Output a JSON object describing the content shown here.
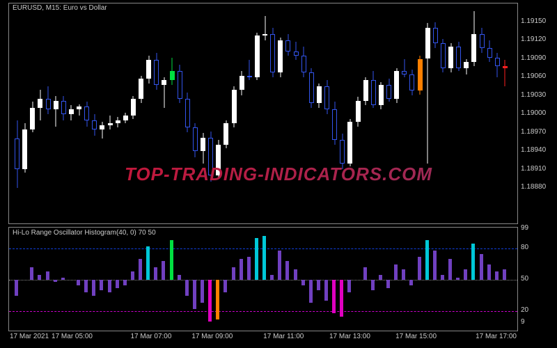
{
  "main": {
    "title": "EURUSD, M15:  Euro vs  Dollar",
    "background": "#000000",
    "border": "#888888",
    "ylim": [
      1.1882,
      1.1918
    ],
    "yticks": [
      1.1888,
      1.1891,
      1.1894,
      1.1897,
      1.19,
      1.1903,
      1.1906,
      1.1909,
      1.1912,
      1.1915
    ],
    "ytick_labels": [
      "1.18880",
      "1.18910",
      "1.18940",
      "1.18970",
      "1.19000",
      "1.19030",
      "1.19060",
      "1.19090",
      "1.19120",
      "1.19150"
    ],
    "candle_up_fill": "#ffffff",
    "candle_up_border": "#ffffff",
    "candle_down_fill": "#000000",
    "candle_down_border": "#3355ee",
    "candle_width": 7,
    "wick_up_color": "#ffffff",
    "wick_down_color": "#3355ee",
    "candles": [
      {
        "o": 1.1896,
        "h": 1.1899,
        "l": 1.1888,
        "c": 1.1891
      },
      {
        "o": 1.1891,
        "h": 1.18985,
        "l": 1.18905,
        "c": 1.18975
      },
      {
        "o": 1.18975,
        "h": 1.1902,
        "l": 1.1897,
        "c": 1.1901
      },
      {
        "o": 1.1901,
        "h": 1.1904,
        "l": 1.1899,
        "c": 1.19025
      },
      {
        "o": 1.19025,
        "h": 1.19045,
        "l": 1.19,
        "c": 1.19008
      },
      {
        "o": 1.19008,
        "h": 1.1903,
        "l": 1.1898,
        "c": 1.19022
      },
      {
        "o": 1.19022,
        "h": 1.1903,
        "l": 1.1899,
        "c": 1.19
      },
      {
        "o": 1.19,
        "h": 1.19015,
        "l": 1.1899,
        "c": 1.19008
      },
      {
        "o": 1.19008,
        "h": 1.19016,
        "l": 1.18998,
        "c": 1.19012
      },
      {
        "o": 1.19012,
        "h": 1.1902,
        "l": 1.1898,
        "c": 1.1899
      },
      {
        "o": 1.1899,
        "h": 1.19,
        "l": 1.18965,
        "c": 1.18975
      },
      {
        "o": 1.18975,
        "h": 1.18988,
        "l": 1.1896,
        "c": 1.18982
      },
      {
        "o": 1.18982,
        "h": 1.18998,
        "l": 1.18975,
        "c": 1.18985
      },
      {
        "o": 1.18985,
        "h": 1.18995,
        "l": 1.18978,
        "c": 1.1899
      },
      {
        "o": 1.1899,
        "h": 1.19002,
        "l": 1.18985,
        "c": 1.18998
      },
      {
        "o": 1.18998,
        "h": 1.1903,
        "l": 1.18992,
        "c": 1.19025
      },
      {
        "o": 1.19025,
        "h": 1.19062,
        "l": 1.19018,
        "c": 1.19058
      },
      {
        "o": 1.19058,
        "h": 1.19095,
        "l": 1.1905,
        "c": 1.19088
      },
      {
        "o": 1.19088,
        "h": 1.191,
        "l": 1.1904,
        "c": 1.19048
      },
      {
        "o": 1.19048,
        "h": 1.1906,
        "l": 1.1901,
        "c": 1.19055
      },
      {
        "o": 1.19055,
        "h": 1.19092,
        "l": 1.19048,
        "c": 1.1907,
        "special": "green"
      },
      {
        "o": 1.1907,
        "h": 1.1908,
        "l": 1.19018,
        "c": 1.19025
      },
      {
        "o": 1.19025,
        "h": 1.19035,
        "l": 1.1897,
        "c": 1.18978
      },
      {
        "o": 1.18978,
        "h": 1.18985,
        "l": 1.1893,
        "c": 1.1894
      },
      {
        "o": 1.1894,
        "h": 1.1897,
        "l": 1.1892,
        "c": 1.18962
      },
      {
        "o": 1.18962,
        "h": 1.18972,
        "l": 1.1889,
        "c": 1.189
      },
      {
        "o": 1.189,
        "h": 1.18958,
        "l": 1.18895,
        "c": 1.1895
      },
      {
        "o": 1.1895,
        "h": 1.1899,
        "l": 1.18945,
        "c": 1.18985
      },
      {
        "o": 1.18985,
        "h": 1.19045,
        "l": 1.18978,
        "c": 1.1904
      },
      {
        "o": 1.1904,
        "h": 1.1907,
        "l": 1.1903,
        "c": 1.19062
      },
      {
        "o": 1.19062,
        "h": 1.19088,
        "l": 1.19055,
        "c": 1.1906
      },
      {
        "o": 1.1906,
        "h": 1.19132,
        "l": 1.19055,
        "c": 1.19128
      },
      {
        "o": 1.19128,
        "h": 1.1916,
        "l": 1.1912,
        "c": 1.1913
      },
      {
        "o": 1.1913,
        "h": 1.1914,
        "l": 1.1906,
        "c": 1.19068
      },
      {
        "o": 1.19068,
        "h": 1.19125,
        "l": 1.1906,
        "c": 1.1912
      },
      {
        "o": 1.1912,
        "h": 1.1913,
        "l": 1.19095,
        "c": 1.19102
      },
      {
        "o": 1.19102,
        "h": 1.19118,
        "l": 1.19088,
        "c": 1.19095
      },
      {
        "o": 1.19095,
        "h": 1.1911,
        "l": 1.1906,
        "c": 1.19068
      },
      {
        "o": 1.19068,
        "h": 1.19075,
        "l": 1.1901,
        "c": 1.19018
      },
      {
        "o": 1.19018,
        "h": 1.1905,
        "l": 1.1901,
        "c": 1.19045
      },
      {
        "o": 1.19045,
        "h": 1.19055,
        "l": 1.19,
        "c": 1.19008
      },
      {
        "o": 1.19008,
        "h": 1.1902,
        "l": 1.1895,
        "c": 1.18958
      },
      {
        "o": 1.18958,
        "h": 1.18968,
        "l": 1.1891,
        "c": 1.1892
      },
      {
        "o": 1.1892,
        "h": 1.18992,
        "l": 1.18915,
        "c": 1.18988
      },
      {
        "o": 1.18988,
        "h": 1.19028,
        "l": 1.1898,
        "c": 1.19022
      },
      {
        "o": 1.19022,
        "h": 1.1906,
        "l": 1.19015,
        "c": 1.19055
      },
      {
        "o": 1.19055,
        "h": 1.1907,
        "l": 1.1901,
        "c": 1.19015
      },
      {
        "o": 1.19015,
        "h": 1.19052,
        "l": 1.19008,
        "c": 1.19048
      },
      {
        "o": 1.19048,
        "h": 1.19058,
        "l": 1.1902,
        "c": 1.19025
      },
      {
        "o": 1.19025,
        "h": 1.19075,
        "l": 1.19018,
        "c": 1.1907
      },
      {
        "o": 1.1907,
        "h": 1.1909,
        "l": 1.1906,
        "c": 1.19065
      },
      {
        "o": 1.19065,
        "h": 1.19072,
        "l": 1.1903,
        "c": 1.19038
      },
      {
        "o": 1.19038,
        "h": 1.19095,
        "l": 1.19032,
        "c": 1.1909,
        "special": "orange"
      },
      {
        "o": 1.1909,
        "h": 1.19148,
        "l": 1.1892,
        "c": 1.1914
      },
      {
        "o": 1.1914,
        "h": 1.1915,
        "l": 1.19108,
        "c": 1.19115
      },
      {
        "o": 1.19115,
        "h": 1.19122,
        "l": 1.19068,
        "c": 1.19075
      },
      {
        "o": 1.19075,
        "h": 1.19115,
        "l": 1.19068,
        "c": 1.1911
      },
      {
        "o": 1.1911,
        "h": 1.19118,
        "l": 1.1907,
        "c": 1.19075
      },
      {
        "o": 1.19075,
        "h": 1.1909,
        "l": 1.19065,
        "c": 1.19085
      },
      {
        "o": 1.19085,
        "h": 1.19168,
        "l": 1.19078,
        "c": 1.1913
      },
      {
        "o": 1.1913,
        "h": 1.1914,
        "l": 1.191,
        "c": 1.19108
      },
      {
        "o": 1.19108,
        "h": 1.1912,
        "l": 1.19085,
        "c": 1.19092
      },
      {
        "o": 1.19092,
        "h": 1.191,
        "l": 1.1906,
        "c": 1.19078
      },
      {
        "o": 1.19078,
        "h": 1.19088,
        "l": 1.19045,
        "c": 1.19075,
        "special": "red"
      }
    ]
  },
  "oscillator": {
    "title": "Hi-Lo Range Oscillator Histogram(40, 0) 70 50",
    "ylim": [
      0,
      100
    ],
    "yticks": [
      9,
      20,
      50,
      80,
      99
    ],
    "ytick_labels": [
      "9",
      "20",
      "50",
      "80",
      "99"
    ],
    "ref_upper": {
      "value": 80,
      "color": "#1040dd"
    },
    "ref_mid": {
      "value": 50,
      "color": "#888888"
    },
    "ref_lower": {
      "value": 20,
      "color": "#cc00cc"
    },
    "colors": {
      "purple": "#7040c0",
      "cyan": "#00c8d8",
      "green": "#00e040",
      "magenta": "#e000c0",
      "orange": "#ff8000"
    },
    "bars": [
      {
        "v": 35,
        "c": "purple"
      },
      {
        "v": 50,
        "c": "purple"
      },
      {
        "v": 62,
        "c": "purple"
      },
      {
        "v": 55,
        "c": "purple"
      },
      {
        "v": 58,
        "c": "purple"
      },
      {
        "v": 48,
        "c": "purple"
      },
      {
        "v": 52,
        "c": "purple"
      },
      {
        "v": 50,
        "c": "purple"
      },
      {
        "v": 45,
        "c": "purple"
      },
      {
        "v": 38,
        "c": "purple"
      },
      {
        "v": 35,
        "c": "purple"
      },
      {
        "v": 40,
        "c": "purple"
      },
      {
        "v": 38,
        "c": "purple"
      },
      {
        "v": 42,
        "c": "purple"
      },
      {
        "v": 45,
        "c": "purple"
      },
      {
        "v": 58,
        "c": "purple"
      },
      {
        "v": 70,
        "c": "purple"
      },
      {
        "v": 82,
        "c": "cyan"
      },
      {
        "v": 62,
        "c": "purple"
      },
      {
        "v": 68,
        "c": "purple"
      },
      {
        "v": 88,
        "c": "green"
      },
      {
        "v": 55,
        "c": "purple"
      },
      {
        "v": 35,
        "c": "purple"
      },
      {
        "v": 22,
        "c": "purple"
      },
      {
        "v": 28,
        "c": "purple"
      },
      {
        "v": 10,
        "c": "magenta"
      },
      {
        "v": 12,
        "c": "orange"
      },
      {
        "v": 38,
        "c": "purple"
      },
      {
        "v": 62,
        "c": "purple"
      },
      {
        "v": 70,
        "c": "purple"
      },
      {
        "v": 72,
        "c": "purple"
      },
      {
        "v": 90,
        "c": "cyan"
      },
      {
        "v": 92,
        "c": "cyan"
      },
      {
        "v": 55,
        "c": "purple"
      },
      {
        "v": 78,
        "c": "purple"
      },
      {
        "v": 68,
        "c": "purple"
      },
      {
        "v": 60,
        "c": "purple"
      },
      {
        "v": 45,
        "c": "purple"
      },
      {
        "v": 28,
        "c": "purple"
      },
      {
        "v": 40,
        "c": "purple"
      },
      {
        "v": 30,
        "c": "purple"
      },
      {
        "v": 18,
        "c": "magenta"
      },
      {
        "v": 15,
        "c": "magenta"
      },
      {
        "v": 38,
        "c": "purple"
      },
      {
        "v": 50,
        "c": "purple"
      },
      {
        "v": 62,
        "c": "purple"
      },
      {
        "v": 40,
        "c": "purple"
      },
      {
        "v": 55,
        "c": "purple"
      },
      {
        "v": 42,
        "c": "purple"
      },
      {
        "v": 65,
        "c": "purple"
      },
      {
        "v": 60,
        "c": "purple"
      },
      {
        "v": 45,
        "c": "purple"
      },
      {
        "v": 72,
        "c": "purple"
      },
      {
        "v": 88,
        "c": "cyan"
      },
      {
        "v": 78,
        "c": "purple"
      },
      {
        "v": 55,
        "c": "purple"
      },
      {
        "v": 70,
        "c": "purple"
      },
      {
        "v": 52,
        "c": "purple"
      },
      {
        "v": 60,
        "c": "purple"
      },
      {
        "v": 85,
        "c": "cyan"
      },
      {
        "v": 75,
        "c": "purple"
      },
      {
        "v": 65,
        "c": "purple"
      },
      {
        "v": 58,
        "c": "purple"
      },
      {
        "v": 60,
        "c": "purple"
      }
    ]
  },
  "xaxis": {
    "ticks": [
      {
        "pos": 0.0,
        "label": "17 Mar 2021"
      },
      {
        "pos": 0.125,
        "label": "17 Mar 05:00"
      },
      {
        "pos": 0.28,
        "label": "17 Mar 07:00"
      },
      {
        "pos": 0.4,
        "label": "17 Mar 09:00"
      },
      {
        "pos": 0.54,
        "label": "17 Mar 11:00"
      },
      {
        "pos": 0.67,
        "label": "17 Mar 13:00"
      },
      {
        "pos": 0.8,
        "label": "17 Mar 15:00"
      },
      {
        "pos": 0.97,
        "label": "17 Mar 17:00"
      }
    ]
  },
  "watermark": {
    "text": "TOP-TRADING-INDICATORS.COM",
    "color1": "#d01030",
    "color2": "#903060"
  }
}
